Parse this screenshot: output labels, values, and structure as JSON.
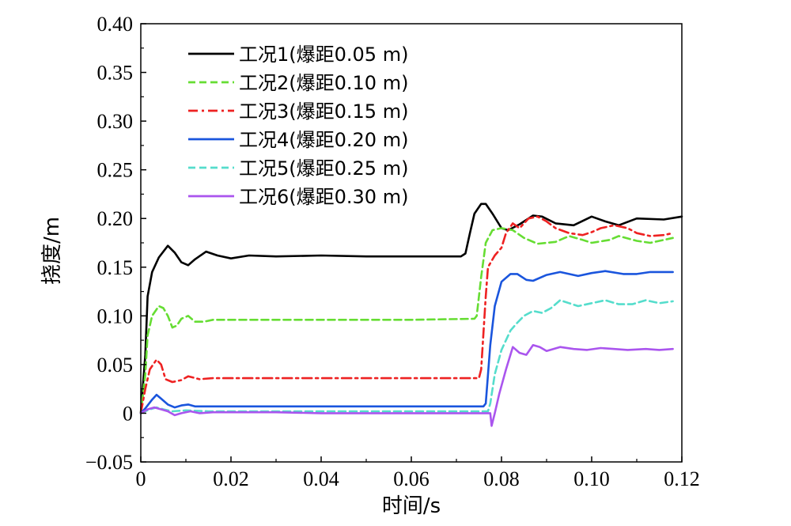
{
  "chart_data": {
    "type": "line",
    "xlabel": "时间/s",
    "ylabel": "挠度/m",
    "xlim": [
      0,
      0.12
    ],
    "ylim": [
      -0.05,
      0.4
    ],
    "xticks": [
      0,
      0.02,
      0.04,
      0.06,
      0.08,
      0.1,
      0.12
    ],
    "xtick_labels": [
      "0",
      "0.02",
      "0.04",
      "0.06",
      "0.08",
      "0.10",
      "0.12"
    ],
    "yticks": [
      -0.05,
      0,
      0.05,
      0.1,
      0.15,
      0.2,
      0.25,
      0.3,
      0.35,
      0.4
    ],
    "ytick_labels": [
      "−0.05",
      "0",
      "0.05",
      "0.10",
      "0.15",
      "0.20",
      "0.25",
      "0.30",
      "0.35",
      "0.40"
    ],
    "grid": false,
    "legend_position": "top-left",
    "series": [
      {
        "name": "工况1(爆距0.05 m)",
        "color": "#000000",
        "dash": "solid",
        "points": [
          [
            0.0,
            0.0
          ],
          [
            0.001,
            0.06
          ],
          [
            0.0015,
            0.12
          ],
          [
            0.0025,
            0.145
          ],
          [
            0.004,
            0.16
          ],
          [
            0.006,
            0.172
          ],
          [
            0.0075,
            0.165
          ],
          [
            0.009,
            0.155
          ],
          [
            0.0105,
            0.152
          ],
          [
            0.012,
            0.158
          ],
          [
            0.0145,
            0.166
          ],
          [
            0.017,
            0.162
          ],
          [
            0.02,
            0.159
          ],
          [
            0.024,
            0.162
          ],
          [
            0.03,
            0.161
          ],
          [
            0.04,
            0.162
          ],
          [
            0.05,
            0.161
          ],
          [
            0.06,
            0.161
          ],
          [
            0.071,
            0.161
          ],
          [
            0.072,
            0.164
          ],
          [
            0.073,
            0.185
          ],
          [
            0.074,
            0.205
          ],
          [
            0.0755,
            0.215
          ],
          [
            0.0765,
            0.215
          ],
          [
            0.078,
            0.205
          ],
          [
            0.08,
            0.19
          ],
          [
            0.0815,
            0.188
          ],
          [
            0.084,
            0.194
          ],
          [
            0.087,
            0.203
          ],
          [
            0.089,
            0.202
          ],
          [
            0.092,
            0.195
          ],
          [
            0.096,
            0.193
          ],
          [
            0.1,
            0.202
          ],
          [
            0.103,
            0.197
          ],
          [
            0.106,
            0.193
          ],
          [
            0.11,
            0.2
          ],
          [
            0.116,
            0.199
          ],
          [
            0.12,
            0.202
          ]
        ]
      },
      {
        "name": "工况2(爆距0.10 m)",
        "color": "#66dd33",
        "dash": "dashed",
        "points": [
          [
            0.0,
            0.0
          ],
          [
            0.001,
            0.04
          ],
          [
            0.0015,
            0.08
          ],
          [
            0.0025,
            0.1
          ],
          [
            0.004,
            0.11
          ],
          [
            0.005,
            0.108
          ],
          [
            0.006,
            0.1
          ],
          [
            0.007,
            0.088
          ],
          [
            0.008,
            0.09
          ],
          [
            0.009,
            0.097
          ],
          [
            0.0105,
            0.1
          ],
          [
            0.012,
            0.094
          ],
          [
            0.014,
            0.094
          ],
          [
            0.016,
            0.096
          ],
          [
            0.02,
            0.096
          ],
          [
            0.03,
            0.096
          ],
          [
            0.04,
            0.096
          ],
          [
            0.05,
            0.096
          ],
          [
            0.06,
            0.096
          ],
          [
            0.074,
            0.097
          ],
          [
            0.0745,
            0.1
          ],
          [
            0.0755,
            0.14
          ],
          [
            0.0765,
            0.175
          ],
          [
            0.078,
            0.188
          ],
          [
            0.08,
            0.19
          ],
          [
            0.0825,
            0.188
          ],
          [
            0.085,
            0.18
          ],
          [
            0.088,
            0.174
          ],
          [
            0.092,
            0.176
          ],
          [
            0.095,
            0.182
          ],
          [
            0.098,
            0.178
          ],
          [
            0.1,
            0.175
          ],
          [
            0.104,
            0.178
          ],
          [
            0.106,
            0.182
          ],
          [
            0.11,
            0.177
          ],
          [
            0.113,
            0.175
          ],
          [
            0.116,
            0.178
          ],
          [
            0.118,
            0.18
          ]
        ]
      },
      {
        "name": "工况3(爆距0.15 m)",
        "color": "#ee2222",
        "dash": "dashdot",
        "points": [
          [
            0.0,
            0.0
          ],
          [
            0.001,
            0.025
          ],
          [
            0.002,
            0.045
          ],
          [
            0.0035,
            0.055
          ],
          [
            0.0045,
            0.05
          ],
          [
            0.0055,
            0.035
          ],
          [
            0.007,
            0.032
          ],
          [
            0.009,
            0.034
          ],
          [
            0.0105,
            0.038
          ],
          [
            0.013,
            0.035
          ],
          [
            0.016,
            0.036
          ],
          [
            0.02,
            0.036
          ],
          [
            0.03,
            0.036
          ],
          [
            0.04,
            0.036
          ],
          [
            0.05,
            0.036
          ],
          [
            0.06,
            0.036
          ],
          [
            0.075,
            0.036
          ],
          [
            0.0755,
            0.045
          ],
          [
            0.0765,
            0.12
          ],
          [
            0.077,
            0.15
          ],
          [
            0.0785,
            0.162
          ],
          [
            0.08,
            0.17
          ],
          [
            0.081,
            0.185
          ],
          [
            0.0825,
            0.195
          ],
          [
            0.084,
            0.19
          ],
          [
            0.086,
            0.2
          ],
          [
            0.088,
            0.202
          ],
          [
            0.09,
            0.197
          ],
          [
            0.092,
            0.19
          ],
          [
            0.095,
            0.185
          ],
          [
            0.098,
            0.183
          ],
          [
            0.1,
            0.186
          ],
          [
            0.102,
            0.19
          ],
          [
            0.105,
            0.193
          ],
          [
            0.108,
            0.19
          ],
          [
            0.11,
            0.185
          ],
          [
            0.113,
            0.182
          ],
          [
            0.116,
            0.183
          ],
          [
            0.118,
            0.185
          ]
        ]
      },
      {
        "name": "工况4(爆距0.20 m)",
        "color": "#1a55dd",
        "dash": "solid",
        "points": [
          [
            0.0,
            0.0
          ],
          [
            0.001,
            0.005
          ],
          [
            0.0025,
            0.014
          ],
          [
            0.0035,
            0.019
          ],
          [
            0.0045,
            0.015
          ],
          [
            0.006,
            0.009
          ],
          [
            0.0075,
            0.006
          ],
          [
            0.009,
            0.008
          ],
          [
            0.0105,
            0.009
          ],
          [
            0.012,
            0.007
          ],
          [
            0.016,
            0.007
          ],
          [
            0.02,
            0.007
          ],
          [
            0.03,
            0.007
          ],
          [
            0.04,
            0.007
          ],
          [
            0.05,
            0.007
          ],
          [
            0.06,
            0.007
          ],
          [
            0.076,
            0.007
          ],
          [
            0.0765,
            0.01
          ],
          [
            0.0775,
            0.07
          ],
          [
            0.0785,
            0.11
          ],
          [
            0.08,
            0.135
          ],
          [
            0.082,
            0.143
          ],
          [
            0.0835,
            0.143
          ],
          [
            0.0855,
            0.137
          ],
          [
            0.087,
            0.136
          ],
          [
            0.09,
            0.142
          ],
          [
            0.093,
            0.145
          ],
          [
            0.097,
            0.141
          ],
          [
            0.1,
            0.144
          ],
          [
            0.103,
            0.146
          ],
          [
            0.107,
            0.143
          ],
          [
            0.11,
            0.143
          ],
          [
            0.113,
            0.145
          ],
          [
            0.118,
            0.145
          ]
        ]
      },
      {
        "name": "工况5(爆距0.25 m)",
        "color": "#55ddcc",
        "dash": "dashed",
        "points": [
          [
            0.0,
            0.0
          ],
          [
            0.002,
            0.004
          ],
          [
            0.0035,
            0.006
          ],
          [
            0.005,
            0.004
          ],
          [
            0.007,
            0.002
          ],
          [
            0.01,
            0.003
          ],
          [
            0.015,
            0.002
          ],
          [
            0.02,
            0.002
          ],
          [
            0.03,
            0.002
          ],
          [
            0.04,
            0.002
          ],
          [
            0.05,
            0.002
          ],
          [
            0.06,
            0.002
          ],
          [
            0.077,
            0.002
          ],
          [
            0.0775,
            0.01
          ],
          [
            0.0785,
            0.04
          ],
          [
            0.08,
            0.065
          ],
          [
            0.082,
            0.085
          ],
          [
            0.0835,
            0.093
          ],
          [
            0.085,
            0.1
          ],
          [
            0.087,
            0.105
          ],
          [
            0.089,
            0.103
          ],
          [
            0.091,
            0.108
          ],
          [
            0.093,
            0.116
          ],
          [
            0.095,
            0.113
          ],
          [
            0.097,
            0.11
          ],
          [
            0.1,
            0.113
          ],
          [
            0.103,
            0.116
          ],
          [
            0.106,
            0.112
          ],
          [
            0.109,
            0.112
          ],
          [
            0.112,
            0.116
          ],
          [
            0.115,
            0.113
          ],
          [
            0.118,
            0.115
          ]
        ]
      },
      {
        "name": "工况6(爆距0.30 m)",
        "color": "#aa55ee",
        "dash": "solid",
        "points": [
          [
            0.0,
            0.0
          ],
          [
            0.0015,
            0.004
          ],
          [
            0.003,
            0.006
          ],
          [
            0.0045,
            0.004
          ],
          [
            0.006,
            0.002
          ],
          [
            0.0075,
            -0.002
          ],
          [
            0.009,
            0.0
          ],
          [
            0.011,
            0.002
          ],
          [
            0.013,
            0.0
          ],
          [
            0.016,
            0.001
          ],
          [
            0.02,
            0.001
          ],
          [
            0.03,
            0.001
          ],
          [
            0.04,
            0.0
          ],
          [
            0.05,
            0.0
          ],
          [
            0.06,
            0.0
          ],
          [
            0.0775,
            0.0
          ],
          [
            0.0778,
            -0.013
          ],
          [
            0.0785,
            0.0
          ],
          [
            0.0795,
            0.02
          ],
          [
            0.081,
            0.045
          ],
          [
            0.0825,
            0.068
          ],
          [
            0.084,
            0.062
          ],
          [
            0.0855,
            0.06
          ],
          [
            0.087,
            0.07
          ],
          [
            0.0885,
            0.068
          ],
          [
            0.09,
            0.064
          ],
          [
            0.093,
            0.068
          ],
          [
            0.096,
            0.066
          ],
          [
            0.099,
            0.065
          ],
          [
            0.102,
            0.067
          ],
          [
            0.105,
            0.066
          ],
          [
            0.108,
            0.065
          ],
          [
            0.112,
            0.066
          ],
          [
            0.115,
            0.065
          ],
          [
            0.118,
            0.066
          ]
        ]
      }
    ]
  }
}
